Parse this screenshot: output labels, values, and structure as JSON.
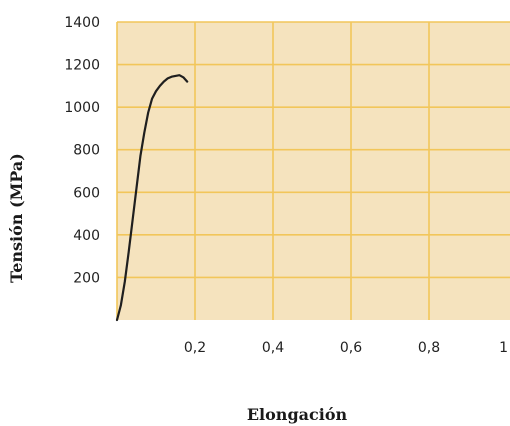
{
  "chart_data": {
    "type": "line",
    "xlabel": "Elongación",
    "ylabel": "Tensión (MPa)",
    "xlim": [
      0,
      1
    ],
    "ylim": [
      0,
      1400
    ],
    "x_ticks": [
      0.2,
      0.4,
      0.6,
      0.8,
      1
    ],
    "x_tick_labels": [
      "0,2",
      "0,4",
      "0,6",
      "0,8",
      "1"
    ],
    "y_ticks": [
      200,
      400,
      600,
      800,
      1000,
      1200,
      1400
    ],
    "y_tick_labels": [
      "200",
      "400",
      "600",
      "800",
      "1000",
      "1200",
      "1400"
    ],
    "grid": true,
    "legend": "none",
    "colors": {
      "plot_background": "#F5E3BE",
      "gridlines": "#F2C65A",
      "line": "#1F1F1F"
    },
    "series": [
      {
        "x": [
          0.0,
          0.01,
          0.02,
          0.03,
          0.04,
          0.05,
          0.06,
          0.07,
          0.08,
          0.09,
          0.1,
          0.11,
          0.12,
          0.13,
          0.14,
          0.15,
          0.16,
          0.17,
          0.18
        ],
        "y": [
          0,
          70,
          180,
          320,
          470,
          620,
          770,
          880,
          975,
          1040,
          1075,
          1100,
          1120,
          1135,
          1143,
          1147,
          1150,
          1140,
          1120
        ]
      }
    ]
  }
}
